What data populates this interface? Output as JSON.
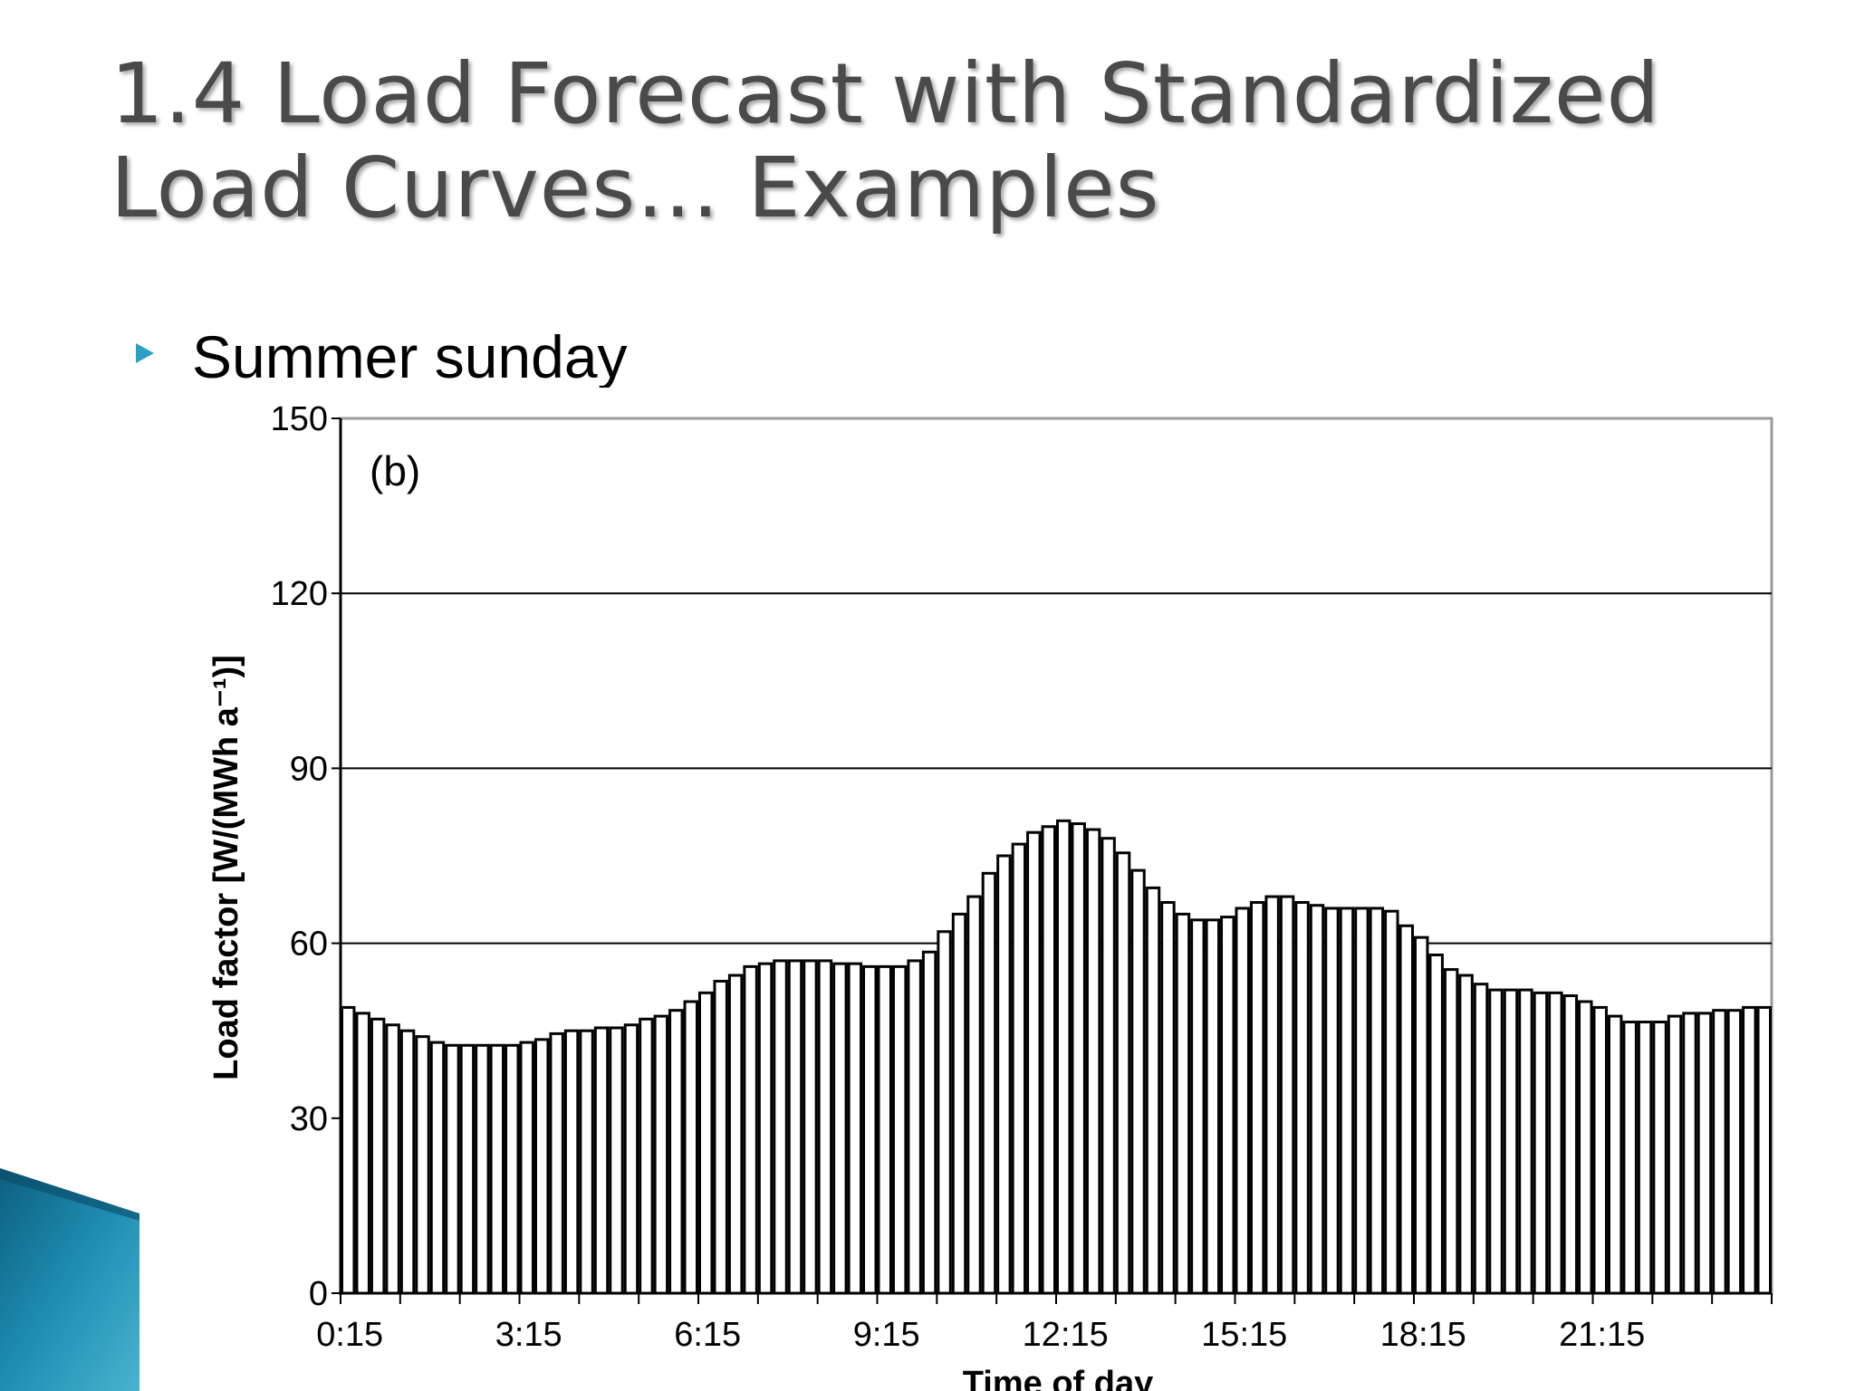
{
  "slide": {
    "title_line1": "1.4 Load Forecast with Standardized",
    "title_line2": "Load Curves… Examples",
    "bullet": "Summer sunday",
    "accent_color": "#2aa0c4",
    "decor_color": "#1b7fa3"
  },
  "chart_data": {
    "type": "bar",
    "panel_label": "(b)",
    "xlabel": "Time of day",
    "ylabel": "Load factor [W/(MWh a⁻¹)]",
    "ylim": [
      0,
      150
    ],
    "yticks": [
      0,
      30,
      60,
      90,
      120,
      150
    ],
    "gridlines_y": [
      60,
      90,
      120
    ],
    "xtick_labels": [
      "0:15",
      "3:15",
      "6:15",
      "9:15",
      "12:15",
      "15:15",
      "18:15",
      "21:15"
    ],
    "interval": "15 min",
    "values": [
      49,
      48,
      47,
      46,
      45,
      44,
      43,
      42.5,
      42.5,
      42.5,
      42.5,
      42.5,
      43,
      43.5,
      44.5,
      45,
      45,
      45.5,
      45.5,
      46,
      47,
      47.5,
      48.5,
      50,
      51.5,
      53.5,
      54.5,
      56,
      56.5,
      57,
      57,
      57,
      57,
      56.5,
      56.5,
      56,
      56,
      56,
      57,
      58.5,
      62,
      65,
      68,
      72,
      75,
      77,
      79,
      80,
      81,
      80.5,
      79.5,
      78,
      75.5,
      72.5,
      69.5,
      67,
      65,
      64,
      64,
      64.5,
      66,
      67,
      68,
      68,
      67,
      66.5,
      66,
      66,
      66,
      66,
      65.5,
      63,
      61,
      58,
      55.5,
      54.5,
      53,
      52,
      52,
      52,
      51.5,
      51.5,
      51,
      50,
      49,
      47.5,
      46.5,
      46.5,
      46.5,
      47.5,
      48,
      48,
      48.5,
      48.5,
      49,
      49
    ]
  }
}
